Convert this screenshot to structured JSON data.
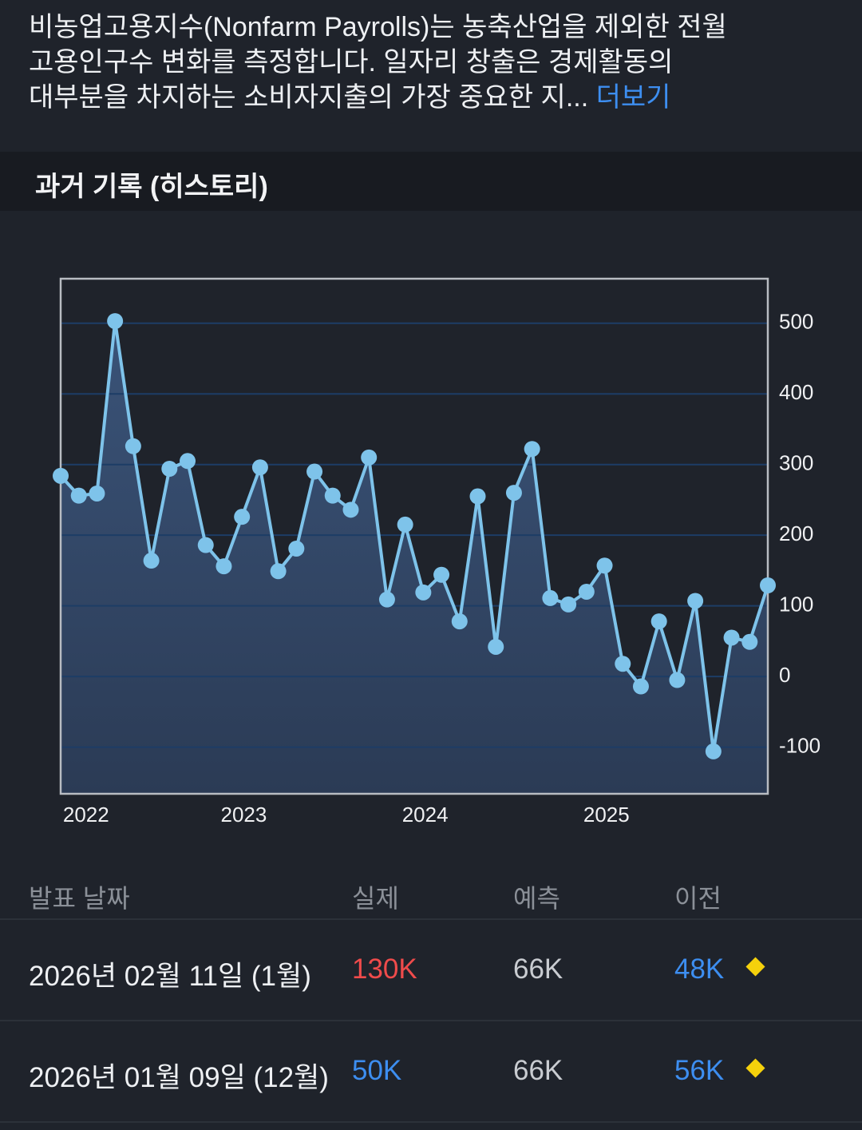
{
  "description": {
    "lines": [
      "비농업고용지수(Nonfarm Payrolls)는 농축산업을 제외한 전월",
      "고용인구수 변화를 측정합니다. 일자리 창출은 경제활동의",
      "대부분을 차지하는 소비자지출의 가장 중요한 지..."
    ],
    "more": "더보기"
  },
  "section_title": "과거 기록 (히스토리)",
  "chart_data": {
    "type": "area-line",
    "x": [
      0,
      1,
      2,
      3,
      4,
      5,
      6,
      7,
      8,
      9,
      10,
      11,
      12,
      13,
      14,
      15,
      16,
      17,
      18,
      19,
      20,
      21,
      22,
      23,
      24,
      25,
      26,
      27,
      28,
      29,
      30,
      31,
      32,
      33,
      34,
      35,
      36,
      37,
      38,
      39
    ],
    "values": [
      284,
      256,
      259,
      503,
      326,
      164,
      294,
      305,
      186,
      156,
      226,
      296,
      149,
      181,
      290,
      256,
      236,
      310,
      109,
      215,
      119,
      144,
      78,
      255,
      42,
      260,
      322,
      111,
      102,
      120,
      157,
      18,
      -14,
      78,
      -5,
      107,
      -106,
      55,
      49,
      129
    ],
    "color": "#7ec3ea",
    "xlim": [
      0,
      39
    ],
    "xticks": [
      {
        "value": 1.4,
        "label": "2022"
      },
      {
        "value": 10.1,
        "label": "2023"
      },
      {
        "value": 20.1,
        "label": "2024"
      },
      {
        "value": 30.1,
        "label": "2025"
      }
    ],
    "ylim": [
      -166,
      563
    ],
    "yticks": [
      -100,
      0,
      100,
      200,
      300,
      400,
      500
    ],
    "grid": true
  },
  "table": {
    "header": [
      "발표 날짜",
      "실제",
      "예측",
      "이전"
    ],
    "rows": [
      [
        "2026년 02월 11일 (1월)",
        "130K",
        "66K",
        "48K"
      ],
      [
        "2026년 01월 09일 (12월)",
        "50K",
        "66K",
        "56K"
      ]
    ]
  }
}
